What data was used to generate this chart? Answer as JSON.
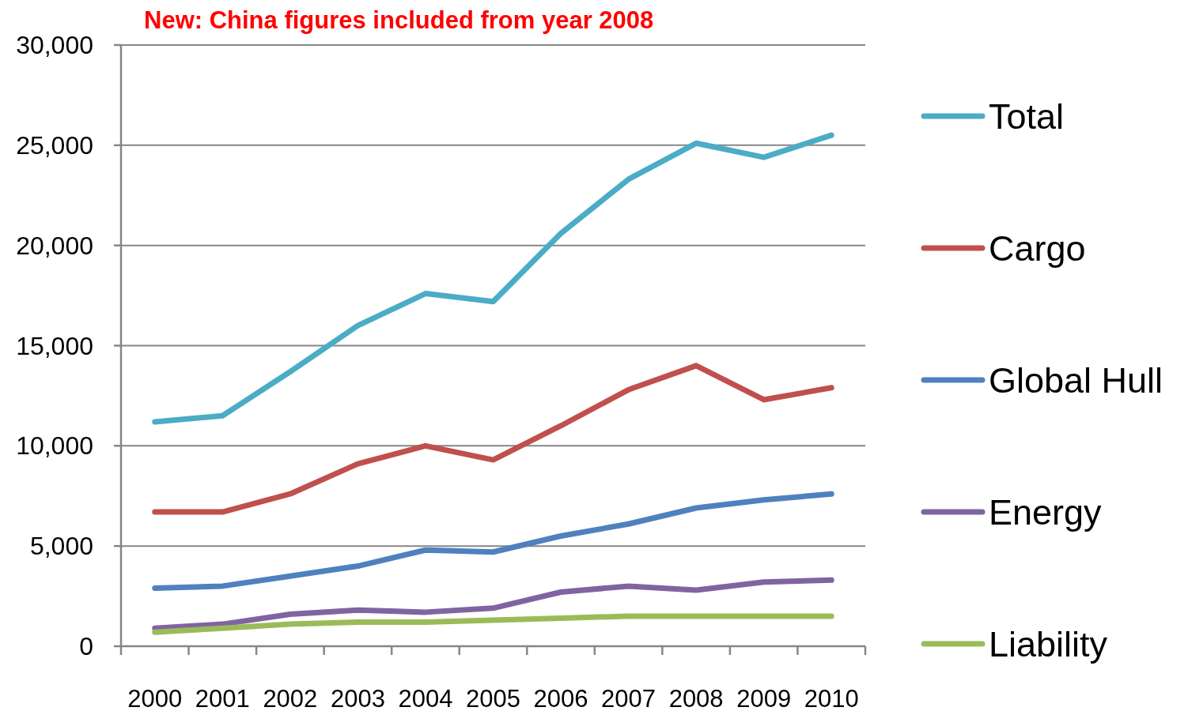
{
  "chart_data": {
    "type": "line",
    "title": "New: China figures included from year 2008",
    "categories": [
      "2000",
      "2001",
      "2002",
      "2003",
      "2004",
      "2005",
      "2006",
      "2007",
      "2008",
      "2009",
      "2010"
    ],
    "series": [
      {
        "name": "Total",
        "color": "#4bacc6",
        "values": [
          11200,
          11500,
          13700,
          16000,
          17600,
          17200,
          20600,
          23300,
          25100,
          24400,
          25500
        ]
      },
      {
        "name": "Cargo",
        "color": "#c0504d",
        "values": [
          6700,
          6700,
          7600,
          9100,
          10000,
          9300,
          11000,
          12800,
          14000,
          12300,
          12900
        ]
      },
      {
        "name": "Global Hull",
        "color": "#4f81bd",
        "values": [
          2900,
          3000,
          3500,
          4000,
          4800,
          4700,
          5500,
          6100,
          6900,
          7300,
          7600
        ]
      },
      {
        "name": "Energy",
        "color": "#8064a2",
        "values": [
          900,
          1100,
          1600,
          1800,
          1700,
          1900,
          2700,
          3000,
          2800,
          3200,
          3300
        ]
      },
      {
        "name": "Liability",
        "color": "#9bbb59",
        "values": [
          700,
          900,
          1100,
          1200,
          1200,
          1300,
          1400,
          1500,
          1500,
          1500,
          1500
        ]
      }
    ],
    "ylim": [
      0,
      30000
    ],
    "yticks": [
      0,
      {
        "value": 5000,
        "label": "5,000"
      },
      {
        "value": 10000,
        "label": "10,000"
      },
      {
        "value": 15000,
        "label": "15,000"
      },
      {
        "value": 20000,
        "label": "20,000"
      },
      {
        "value": 25000,
        "label": "25,000"
      },
      {
        "value": 30000,
        "label": "30,000"
      }
    ],
    "grid": "y",
    "legend": "right",
    "marker": "none",
    "line_style": "solid"
  }
}
